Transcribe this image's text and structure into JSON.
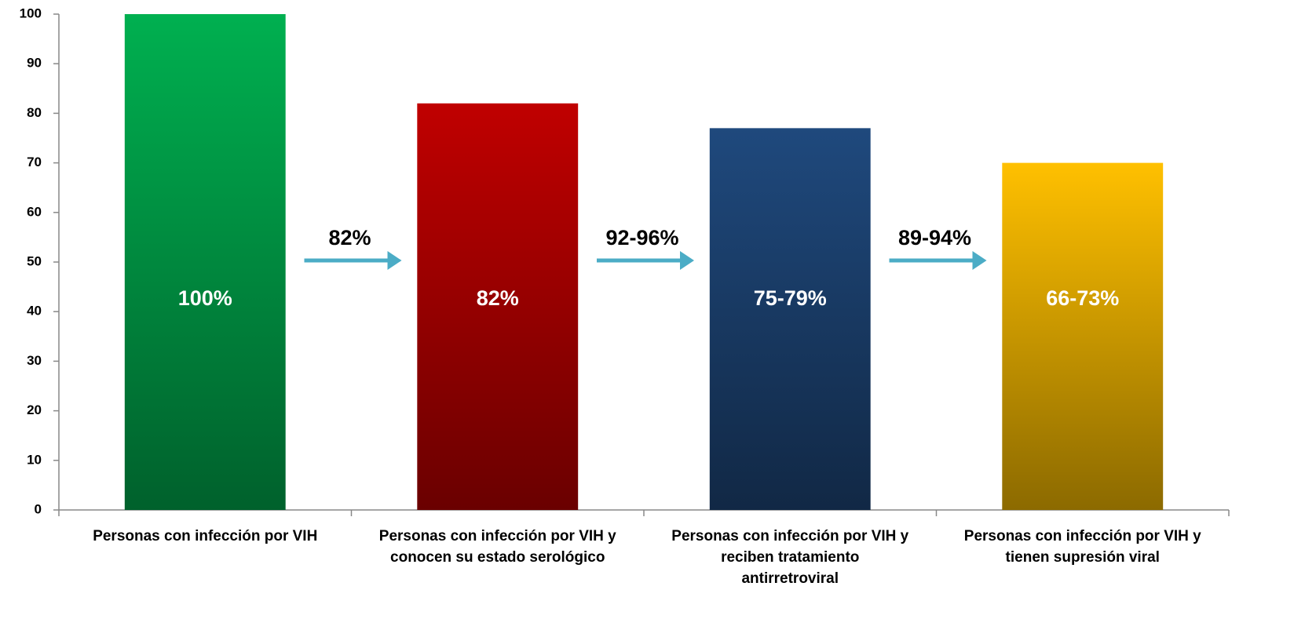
{
  "chart_data": {
    "type": "bar",
    "categories": [
      "Personas con infección por VIH",
      "Personas con infección por VIH y\nconocen su estado serológico",
      "Personas con infección por VIH y\nreciben tratamiento\nantirretroviral",
      "Personas con infección por VIH y\ntienen supresión viral"
    ],
    "values": [
      100,
      82,
      77,
      70
    ],
    "value_labels": [
      "100%",
      "82%",
      "75-79%",
      "66-73%"
    ],
    "colors": [
      "#00b050",
      "#c00000",
      "#1f497d",
      "#ffc000"
    ],
    "annotations": [
      "82%",
      "92-96%",
      "89-94%"
    ],
    "annotation_color": "#4bacc6",
    "ylim": [
      0,
      100
    ],
    "yticks": [
      0,
      10,
      20,
      30,
      40,
      50,
      60,
      70,
      80,
      90,
      100
    ],
    "grid": false
  }
}
